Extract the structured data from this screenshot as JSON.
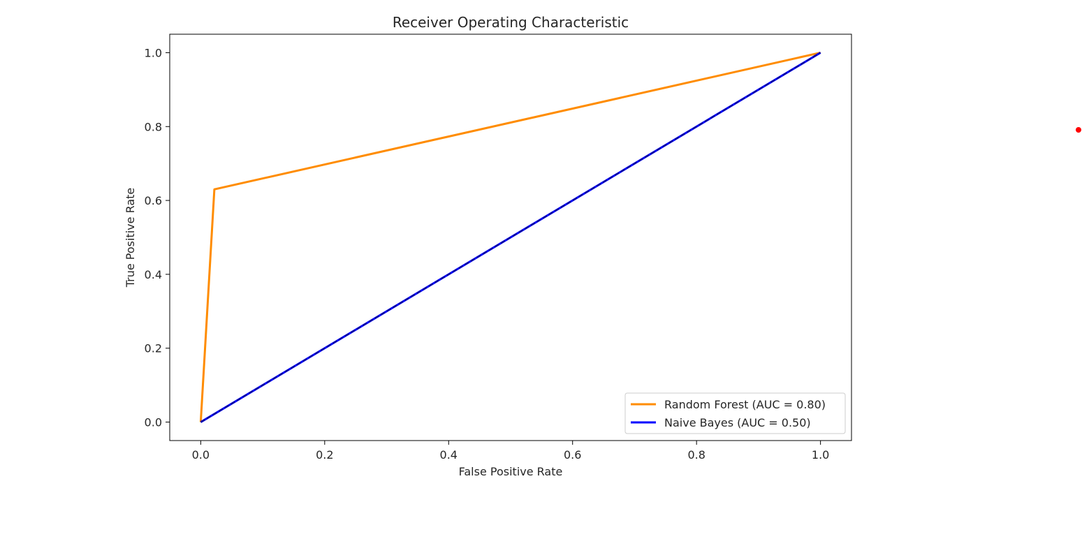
{
  "chart_data": {
    "type": "line",
    "title": "Receiver Operating Characteristic",
    "xlabel": "False Positive Rate",
    "ylabel": "True Positive Rate",
    "xlim": [
      -0.05,
      1.05
    ],
    "ylim": [
      -0.05,
      1.05
    ],
    "xticks": [
      0.0,
      0.2,
      0.4,
      0.6,
      0.8,
      1.0
    ],
    "yticks": [
      0.0,
      0.2,
      0.4,
      0.6,
      0.8,
      1.0
    ],
    "xtick_labels": [
      "0.0",
      "0.2",
      "0.4",
      "0.6",
      "0.8",
      "1.0"
    ],
    "ytick_labels": [
      "0.0",
      "0.2",
      "0.4",
      "0.6",
      "0.8",
      "1.0"
    ],
    "grid": false,
    "legend_position": "lower-right",
    "series": [
      {
        "name": "Random Forest (AUC = 0.80)",
        "color": "#ff8c00",
        "x": [
          0.0,
          0.022,
          1.0
        ],
        "y": [
          0.0,
          0.63,
          1.0
        ]
      },
      {
        "name": "Naive Bayes (AUC = 0.50)",
        "color": "#0000ff",
        "x": [
          0.0,
          1.0
        ],
        "y": [
          0.0,
          1.0
        ]
      }
    ],
    "reference_line": {
      "color": "#00008b",
      "x": [
        0.0,
        1.0
      ],
      "y": [
        0.0,
        1.0
      ]
    }
  },
  "marker_dot": {
    "color": "#ff0000"
  }
}
